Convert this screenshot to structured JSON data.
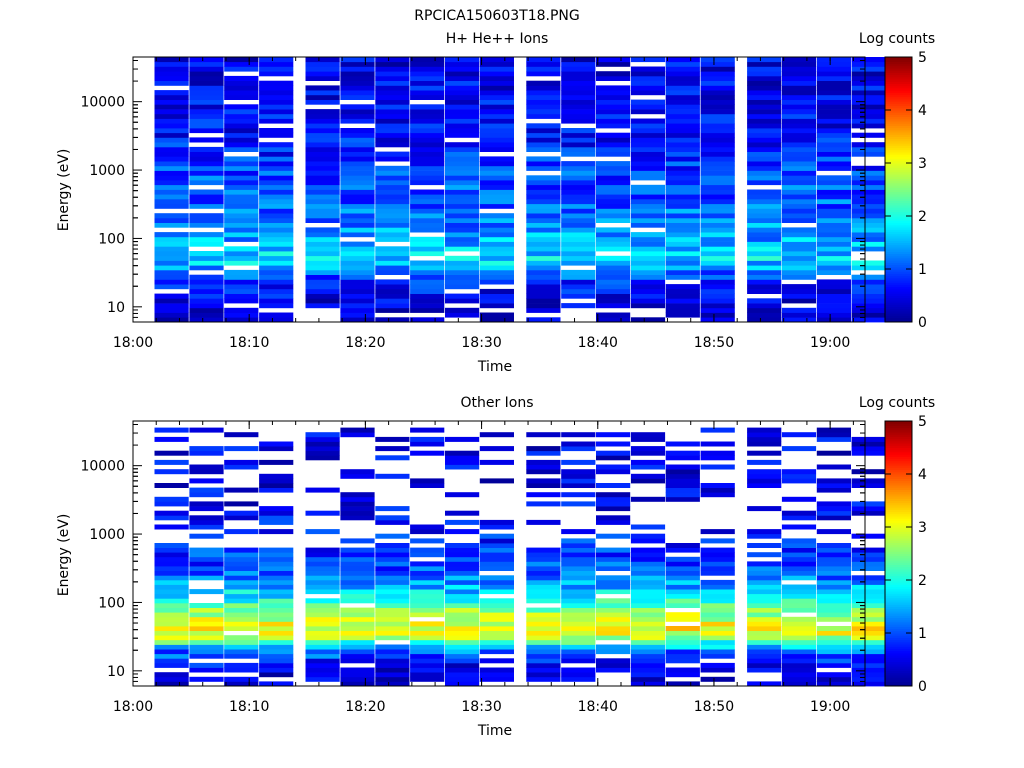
{
  "page": {
    "title": "RPCICA150603T18.PNG"
  },
  "colormap": [
    "#00008f",
    "#0000ff",
    "#0080ff",
    "#00ffff",
    "#80ff80",
    "#ffff00",
    "#ff8000",
    "#ff0000",
    "#800000"
  ],
  "chart_data": [
    {
      "type": "heatmap",
      "title": "H+ He++ Ions",
      "xlabel": "Time",
      "ylabel": "Energy (eV)",
      "yscale": "log",
      "xlim": [
        "18:00",
        "19:03"
      ],
      "ylim": [
        6,
        45000
      ],
      "xticks": [
        "18:00",
        "18:10",
        "18:20",
        "18:30",
        "18:40",
        "18:50",
        "19:00"
      ],
      "yticks": [
        "10",
        "100",
        "1000",
        "10000"
      ],
      "colorbar": {
        "label": "Log counts",
        "min": 0,
        "max": 5,
        "ticks": [
          "0",
          "1",
          "2",
          "3",
          "4",
          "5"
        ]
      },
      "time_columns": [
        "18:02",
        "18:05",
        "18:08",
        "18:11",
        "18:15",
        "18:18",
        "18:21",
        "18:24",
        "18:27",
        "18:30",
        "18:34",
        "18:37",
        "18:40",
        "18:43",
        "18:46",
        "18:49",
        "18:53",
        "18:56",
        "18:59",
        "19:02"
      ],
      "energy_profile": {
        "energy_eV": [
          6,
          10,
          20,
          30,
          40,
          50,
          80,
          150,
          300,
          700,
          1500,
          5000,
          45000
        ],
        "log_counts": [
          0.3,
          0.4,
          0.7,
          1.1,
          1.5,
          1.7,
          1.5,
          1.3,
          1.1,
          1.0,
          0.8,
          0.6,
          0.5
        ]
      },
      "cells_upper_energy_eV": 45000
    },
    {
      "type": "heatmap",
      "title": "Other Ions",
      "xlabel": "Time",
      "ylabel": "Energy (eV)",
      "yscale": "log",
      "xlim": [
        "18:00",
        "19:03"
      ],
      "ylim": [
        6,
        45000
      ],
      "xticks": [
        "18:00",
        "18:10",
        "18:20",
        "18:30",
        "18:40",
        "18:50",
        "19:00"
      ],
      "yticks": [
        "10",
        "100",
        "1000",
        "10000"
      ],
      "colorbar": {
        "label": "Log counts",
        "min": 0,
        "max": 5,
        "ticks": [
          "0",
          "1",
          "2",
          "3",
          "4",
          "5"
        ]
      },
      "time_columns": [
        "18:02",
        "18:05",
        "18:08",
        "18:11",
        "18:15",
        "18:18",
        "18:21",
        "18:24",
        "18:27",
        "18:30",
        "18:34",
        "18:37",
        "18:40",
        "18:43",
        "18:46",
        "18:49",
        "18:53",
        "18:56",
        "18:59",
        "19:02"
      ],
      "energy_profile": {
        "energy_eV": [
          6,
          10,
          20,
          30,
          40,
          50,
          80,
          150,
          300,
          700,
          1500,
          5000,
          45000
        ],
        "log_counts": [
          0.3,
          0.4,
          1.2,
          2.6,
          3.1,
          3.0,
          2.5,
          1.6,
          1.0,
          0.8,
          0.6,
          0.5,
          0.5
        ]
      },
      "cells_upper_energy_eV": 36000
    }
  ]
}
